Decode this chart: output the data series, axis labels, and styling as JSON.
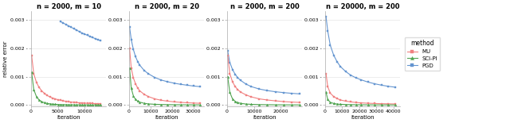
{
  "subplots": [
    {
      "title": "n = 2000, m = 10",
      "xlim": [
        0,
        14000
      ],
      "ylim": [
        0,
        0.0033
      ],
      "xticks": [
        0,
        5000,
        10000
      ],
      "yticks": [
        0.0,
        0.001,
        0.002,
        0.003
      ],
      "mu": {
        "x": [
          100,
          500,
          1000,
          1500,
          2000,
          2500,
          3000,
          3500,
          4000,
          4500,
          5000,
          5500,
          6000,
          6500,
          7000,
          7500,
          8000,
          8500,
          9000,
          9500,
          10000,
          10500,
          11000,
          11500,
          12000,
          12500,
          13000
        ],
        "y": [
          0.00175,
          0.0011,
          0.0008,
          0.00062,
          0.0005,
          0.00041,
          0.00034,
          0.00029,
          0.00025,
          0.00022,
          0.00019,
          0.00017,
          0.00015,
          0.000135,
          0.00012,
          0.000108,
          9.8e-05,
          9e-05,
          8.2e-05,
          7.6e-05,
          7e-05,
          6.5e-05,
          6.1e-05,
          5.7e-05,
          5.4e-05,
          5.1e-05,
          4.8e-05
        ]
      },
      "scipi": {
        "x": [
          100,
          500,
          1000,
          1500,
          2000,
          2500,
          3000,
          3500,
          4000,
          4500,
          5000,
          5500,
          6000,
          6500,
          7000,
          7500,
          8000,
          8500,
          9000,
          9500,
          10000,
          10500,
          11000,
          11500,
          12000,
          12500,
          13000
        ],
        "y": [
          0.00115,
          0.00055,
          0.0003,
          0.00018,
          0.00012,
          8.5e-05,
          6.2e-05,
          4.7e-05,
          3.7e-05,
          3e-05,
          2.5e-05,
          2.1e-05,
          1.8e-05,
          1.6e-05,
          1.4e-05,
          1.2e-05,
          1.1e-05,
          1e-05,
          9e-06,
          8.3e-06,
          7.7e-06,
          7.1e-06,
          6.6e-06,
          6.2e-06,
          5.8e-06,
          5.5e-06,
          5.2e-06
        ]
      },
      "pgd": {
        "x": [
          5500,
          6000,
          6500,
          7000,
          7500,
          8000,
          8500,
          9000,
          9500,
          10000,
          10500,
          11000,
          11500,
          12000,
          12500,
          13000
        ],
        "y": [
          0.00293,
          0.00288,
          0.00283,
          0.00278,
          0.00273,
          0.00268,
          0.00263,
          0.00258,
          0.00253,
          0.00249,
          0.00245,
          0.00241,
          0.00237,
          0.00233,
          0.00229,
          0.00226
        ]
      }
    },
    {
      "title": "n = 2000, m = 20",
      "xlim": [
        0,
        35000
      ],
      "ylim": [
        0,
        0.0033
      ],
      "xticks": [
        0,
        10000,
        20000,
        30000
      ],
      "yticks": [
        0.0,
        0.001,
        0.002,
        0.003
      ],
      "mu": {
        "x": [
          200,
          1000,
          2000,
          3000,
          4000,
          5000,
          7000,
          9000,
          12000,
          15000,
          18000,
          21000,
          24000,
          27000,
          30000,
          33000
        ],
        "y": [
          0.002,
          0.0013,
          0.00095,
          0.00075,
          0.0006,
          0.0005,
          0.00038,
          0.0003,
          0.00022,
          0.00017,
          0.00014,
          0.000115,
          9.8e-05,
          8.4e-05,
          7.4e-05,
          6.6e-05
        ]
      },
      "scipi": {
        "x": [
          200,
          1000,
          2000,
          3000,
          4000,
          5000,
          7000,
          9000,
          12000,
          15000,
          18000,
          21000,
          24000,
          27000,
          30000,
          33000
        ],
        "y": [
          0.0013,
          0.0006,
          0.00032,
          0.0002,
          0.00014,
          0.000105,
          6.5e-05,
          4.4e-05,
          3e-05,
          2.2e-05,
          1.7e-05,
          1.4e-05,
          1.2e-05,
          1e-05,
          8.7e-06,
          7.7e-06
        ]
      },
      "pgd": {
        "x": [
          200,
          1000,
          2000,
          3000,
          4000,
          5000,
          7000,
          9000,
          12000,
          15000,
          18000,
          21000,
          24000,
          27000,
          30000,
          33000
        ],
        "y": [
          0.00275,
          0.0023,
          0.00195,
          0.0017,
          0.00153,
          0.0014,
          0.00122,
          0.0011,
          0.00097,
          0.00088,
          0.00082,
          0.00077,
          0.00073,
          0.0007,
          0.00067,
          0.00065
        ]
      }
    },
    {
      "title": "n = 2000, m = 200",
      "xlim": [
        0,
        28000
      ],
      "ylim": [
        0,
        0.0033
      ],
      "xticks": [
        0,
        10000,
        20000
      ],
      "yticks": [
        0.0,
        0.001,
        0.002,
        0.003
      ],
      "mu": {
        "x": [
          200,
          1000,
          2000,
          3000,
          4000,
          5000,
          7000,
          9000,
          12000,
          15000,
          18000,
          21000,
          24000,
          27000
        ],
        "y": [
          0.00175,
          0.0011,
          0.00082,
          0.00065,
          0.00054,
          0.00046,
          0.00036,
          0.00029,
          0.00022,
          0.00018,
          0.00015,
          0.000125,
          0.000108,
          9.5e-05
        ]
      },
      "scipi": {
        "x": [
          200,
          1000,
          2000,
          3000,
          4000,
          5000,
          7000,
          9000,
          12000,
          15000,
          18000,
          21000,
          24000,
          27000
        ],
        "y": [
          0.001,
          0.00045,
          0.00022,
          0.00013,
          8.7e-05,
          6.5e-05,
          4e-05,
          2.8e-05,
          1.9e-05,
          1.4e-05,
          1.1e-05,
          9.3e-06,
          7.9e-06,
          6.9e-06
        ]
      },
      "pgd": {
        "x": [
          200,
          1000,
          2000,
          3000,
          4000,
          5000,
          7000,
          9000,
          12000,
          15000,
          18000,
          21000,
          24000,
          27000
        ],
        "y": [
          0.0019,
          0.0015,
          0.00125,
          0.00108,
          0.00096,
          0.00087,
          0.00074,
          0.00065,
          0.000565,
          0.00051,
          0.00047,
          0.00044,
          0.000415,
          0.000395
        ]
      }
    },
    {
      "title": "n = 20000, m = 200",
      "xlim": [
        0,
        44000
      ],
      "ylim": [
        0,
        0.0033
      ],
      "xticks": [
        0,
        10000,
        20000,
        30000,
        40000
      ],
      "yticks": [
        0.0,
        0.001,
        0.002,
        0.003
      ],
      "mu": {
        "x": [
          500,
          1500,
          3000,
          5000,
          7000,
          9000,
          12000,
          15000,
          18000,
          21000,
          25000,
          29000,
          33000,
          37000,
          41000
        ],
        "y": [
          0.0011,
          0.00065,
          0.00042,
          0.0003,
          0.00023,
          0.00018,
          0.00014,
          0.000113,
          9.4e-05,
          8e-05,
          6.7e-05,
          5.8e-05,
          5.1e-05,
          4.6e-05,
          4.2e-05
        ]
      },
      "scipi": {
        "x": [
          500,
          1500,
          3000,
          5000,
          7000,
          9000,
          12000,
          15000,
          18000,
          21000,
          25000,
          29000,
          33000,
          37000,
          41000
        ],
        "y": [
          0.00045,
          0.0002,
          0.0001,
          5.8e-05,
          4e-05,
          3e-05,
          2.2e-05,
          1.7e-05,
          1.4e-05,
          1.2e-05,
          9.6e-06,
          8.1e-06,
          7e-06,
          6.2e-06,
          5.5e-06
        ]
      },
      "pgd": {
        "x": [
          500,
          1500,
          3000,
          5000,
          7000,
          9000,
          12000,
          15000,
          18000,
          21000,
          25000,
          29000,
          33000,
          37000,
          41000
        ],
        "y": [
          0.0031,
          0.0026,
          0.0021,
          0.00175,
          0.00152,
          0.00135,
          0.00118,
          0.00105,
          0.00096,
          0.00089,
          0.00081,
          0.00075,
          0.0007,
          0.00066,
          0.00063
        ]
      }
    }
  ],
  "colors": {
    "mu": "#F08080",
    "scipi": "#52A552",
    "pgd": "#6495D0"
  },
  "markers": {
    "mu": "s",
    "scipi": "^",
    "pgd": "s"
  },
  "legend_labels": [
    "MU",
    "SCI-PI",
    "PGD"
  ],
  "ylabel": "relative error",
  "xlabel": "iteration",
  "background_color": "#ffffff"
}
